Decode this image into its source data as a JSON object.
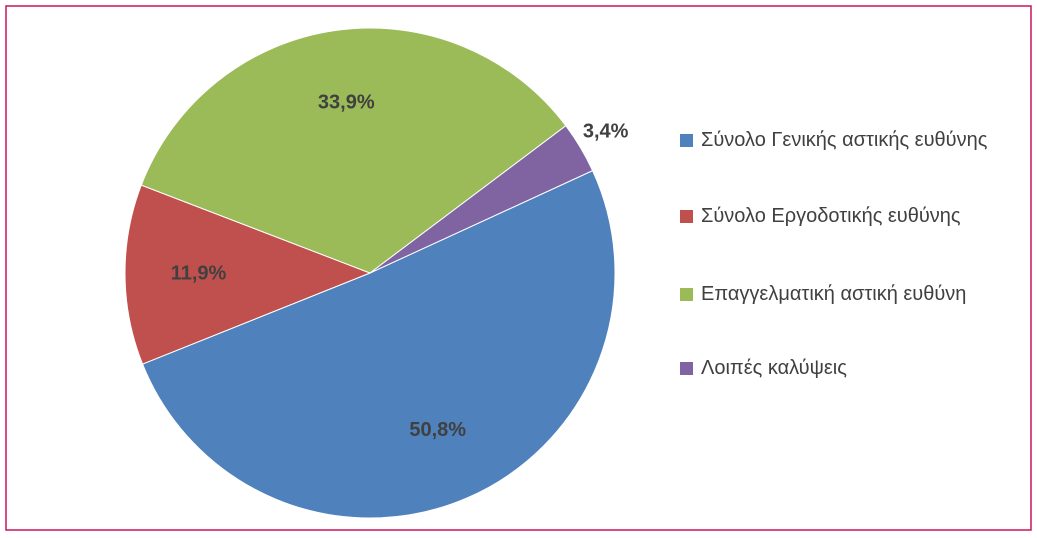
{
  "chart_data": {
    "type": "pie",
    "categories": [
      "Σύνολο Γενικής αστικής ευθύνης",
      "Σύνολο Εργοδοτικής ευθύνης",
      "Επαγγελματική αστική ευθύνη",
      "Λοιπές καλύψεις"
    ],
    "values": [
      50.8,
      11.9,
      33.9,
      3.4
    ],
    "value_labels": [
      "50,8%",
      "11,9%",
      "33,9%",
      "3,4%"
    ],
    "colors": [
      "#4f81bd",
      "#c0504d",
      "#9bbb59",
      "#8064a2"
    ],
    "legend": "right"
  }
}
